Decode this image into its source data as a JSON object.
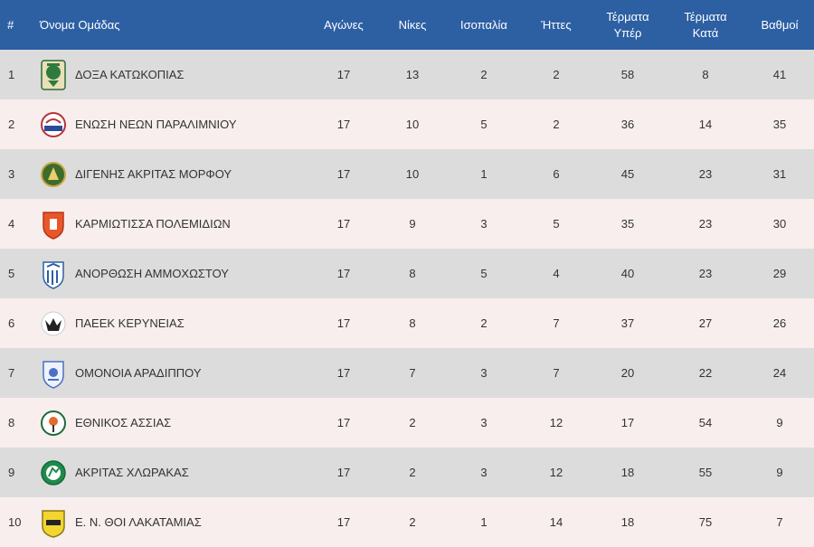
{
  "header": {
    "rank": "#",
    "team": "Όνομα Ομάδας",
    "played": "Αγώνες",
    "wins": "Νίκες",
    "draws": "Ισοπαλία",
    "losses": "Ήττες",
    "goals_for": [
      "Τέρματα",
      "Υπέρ"
    ],
    "goals_against": [
      "Τέρματα",
      "Κατά"
    ],
    "points": "Βαθμοί"
  },
  "rows": [
    {
      "rank": "1",
      "team": "ΔΟΞΑ ΚΑΤΩΚΟΠΙΑΣ",
      "logo": "doxa-logo",
      "played": "17",
      "wins": "13",
      "draws": "2",
      "losses": "2",
      "gf": "58",
      "ga": "8",
      "pts": "41"
    },
    {
      "rank": "2",
      "team": "ΕΝΩΣΗ ΝΕΩΝ ΠΑΡΑΛΙΜΝΙΟΥ",
      "logo": "enp-logo",
      "played": "17",
      "wins": "10",
      "draws": "5",
      "losses": "2",
      "gf": "36",
      "ga": "14",
      "pts": "35"
    },
    {
      "rank": "3",
      "team": "ΔΙΓΕΝΗΣ ΑΚΡΙΤΑΣ ΜΟΡΦΟΥ",
      "logo": "digenis-logo",
      "played": "17",
      "wins": "10",
      "draws": "1",
      "losses": "6",
      "gf": "45",
      "ga": "23",
      "pts": "31"
    },
    {
      "rank": "4",
      "team": "ΚΑΡΜΙΩΤΙΣΣΑ ΠΟΛΕΜΙΔΙΩΝ",
      "logo": "karmiotissa-logo",
      "played": "17",
      "wins": "9",
      "draws": "3",
      "losses": "5",
      "gf": "35",
      "ga": "23",
      "pts": "30"
    },
    {
      "rank": "5",
      "team": "ΑΝΟΡΘΩΣΗ ΑΜΜΟΧΩΣΤΟΥ",
      "logo": "anorthosis-logo",
      "played": "17",
      "wins": "8",
      "draws": "5",
      "losses": "4",
      "gf": "40",
      "ga": "23",
      "pts": "29"
    },
    {
      "rank": "6",
      "team": "ΠΑΕΕΚ ΚΕΡΥΝΕΙΑΣ",
      "logo": "paeek-logo",
      "played": "17",
      "wins": "8",
      "draws": "2",
      "losses": "7",
      "gf": "37",
      "ga": "27",
      "pts": "26"
    },
    {
      "rank": "7",
      "team": "ΟΜΟΝΟΙΑ ΑΡΑΔΙΠΠΟΥ",
      "logo": "omonia-logo",
      "played": "17",
      "wins": "7",
      "draws": "3",
      "losses": "7",
      "gf": "20",
      "ga": "22",
      "pts": "24"
    },
    {
      "rank": "8",
      "team": "ΕΘΝΙΚΟΣ ΑΣΣΙΑΣ",
      "logo": "ethnikos-logo",
      "played": "17",
      "wins": "2",
      "draws": "3",
      "losses": "12",
      "gf": "17",
      "ga": "54",
      "pts": "9"
    },
    {
      "rank": "9",
      "team": "ΑΚΡΙΤΑΣ ΧΛΩΡΑΚΑΣ",
      "logo": "akritas-logo",
      "played": "17",
      "wins": "2",
      "draws": "3",
      "losses": "12",
      "gf": "18",
      "ga": "55",
      "pts": "9"
    },
    {
      "rank": "10",
      "team": "Ε. Ν. ΘΟΙ ΛΑΚΑΤΑΜΙΑΣ",
      "logo": "thoi-logo",
      "played": "17",
      "wins": "2",
      "draws": "1",
      "losses": "14",
      "gf": "18",
      "ga": "75",
      "pts": "7"
    }
  ],
  "colors": {
    "header_bg": "#2d5fa3",
    "row_odd": "#dcdcdc",
    "row_even": "#f8eeee"
  }
}
